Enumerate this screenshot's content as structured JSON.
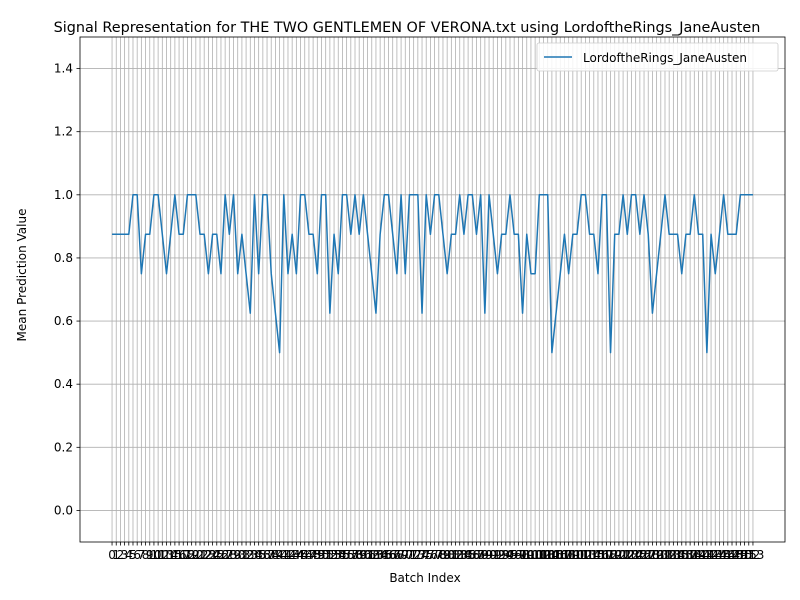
{
  "chart_data": {
    "type": "line",
    "title": "Signal Representation for THE TWO GENTLEMEN OF VERONA.txt using LordoftheRings_JaneAusten",
    "xlabel": "Batch Index",
    "ylabel": "Mean Prediction Value",
    "ylim": [
      -0.1,
      1.5
    ],
    "yticks": [
      0.0,
      0.2,
      0.4,
      0.6,
      0.8,
      1.0,
      1.2,
      1.4
    ],
    "grid": true,
    "legend_position": "top-right",
    "series": [
      {
        "name": "LordoftheRings_JaneAusten",
        "color": "#1f77b4",
        "values": [
          0.875,
          0.875,
          0.875,
          0.875,
          0.875,
          1.0,
          1.0,
          0.75,
          0.875,
          0.875,
          1.0,
          1.0,
          0.875,
          0.75,
          0.875,
          1.0,
          0.875,
          0.875,
          1.0,
          1.0,
          1.0,
          0.875,
          0.875,
          0.75,
          0.875,
          0.875,
          0.75,
          1.0,
          0.875,
          1.0,
          0.75,
          0.875,
          0.75,
          0.625,
          1.0,
          0.75,
          1.0,
          1.0,
          0.75,
          0.625,
          0.5,
          1.0,
          0.75,
          0.875,
          0.75,
          1.0,
          1.0,
          0.875,
          0.875,
          0.75,
          1.0,
          1.0,
          0.625,
          0.875,
          0.75,
          1.0,
          1.0,
          0.875,
          1.0,
          0.875,
          1.0,
          0.875,
          0.75,
          0.625,
          0.875,
          1.0,
          1.0,
          0.875,
          0.75,
          1.0,
          0.75,
          1.0,
          1.0,
          1.0,
          0.625,
          1.0,
          0.875,
          1.0,
          1.0,
          0.875,
          0.75,
          0.875,
          0.875,
          1.0,
          0.875,
          1.0,
          1.0,
          0.875,
          1.0,
          0.625,
          1.0,
          0.875,
          0.75,
          0.875,
          0.875,
          1.0,
          0.875,
          0.875,
          0.625,
          0.875,
          0.75,
          0.75,
          1.0,
          1.0,
          1.0,
          0.5,
          0.625,
          0.75,
          0.875,
          0.75,
          0.875,
          0.875,
          1.0,
          1.0,
          0.875,
          0.875,
          0.75,
          1.0,
          1.0,
          0.5,
          0.875,
          0.875,
          1.0,
          0.875,
          1.0,
          1.0,
          0.875,
          1.0,
          0.875,
          0.625,
          0.75,
          0.875,
          1.0,
          0.875,
          0.875,
          0.875,
          0.75,
          0.875,
          0.875,
          1.0,
          0.875,
          0.875,
          0.5,
          0.875,
          0.75,
          0.875,
          1.0,
          0.875,
          0.875,
          0.875,
          1.0,
          1.0,
          1.0,
          1.0
        ]
      }
    ]
  }
}
